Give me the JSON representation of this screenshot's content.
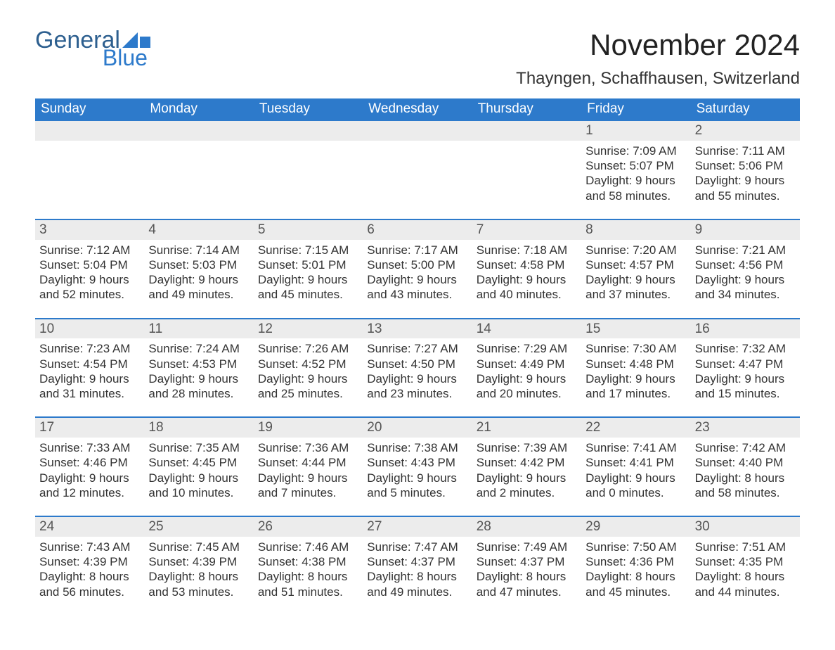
{
  "brand": {
    "word1": "General",
    "word2": "Blue",
    "logo_fill": "#2d7acb",
    "text_color_dark": "#2d5f8f",
    "text_color_light": "#2d7acb"
  },
  "title": "November 2024",
  "location": "Thayngen, Schaffhausen, Switzerland",
  "header_bg": "#2d7acb",
  "header_fg": "#ffffff",
  "week_border_color": "#2d7acb",
  "daynum_bg": "#ececec",
  "body_text_color": "#333333",
  "background_color": "#ffffff",
  "font_family": "Arial, Helvetica, sans-serif",
  "title_fontsize": 42,
  "location_fontsize": 24,
  "weekday_fontsize": 19,
  "daynum_fontsize": 19,
  "cell_fontsize": 17,
  "weekdays": [
    "Sunday",
    "Monday",
    "Tuesday",
    "Wednesday",
    "Thursday",
    "Friday",
    "Saturday"
  ],
  "weeks": [
    [
      {
        "day": "",
        "sunrise": "",
        "sunset": "",
        "daylight1": "",
        "daylight2": ""
      },
      {
        "day": "",
        "sunrise": "",
        "sunset": "",
        "daylight1": "",
        "daylight2": ""
      },
      {
        "day": "",
        "sunrise": "",
        "sunset": "",
        "daylight1": "",
        "daylight2": ""
      },
      {
        "day": "",
        "sunrise": "",
        "sunset": "",
        "daylight1": "",
        "daylight2": ""
      },
      {
        "day": "",
        "sunrise": "",
        "sunset": "",
        "daylight1": "",
        "daylight2": ""
      },
      {
        "day": "1",
        "sunrise": "Sunrise: 7:09 AM",
        "sunset": "Sunset: 5:07 PM",
        "daylight1": "Daylight: 9 hours",
        "daylight2": "and 58 minutes."
      },
      {
        "day": "2",
        "sunrise": "Sunrise: 7:11 AM",
        "sunset": "Sunset: 5:06 PM",
        "daylight1": "Daylight: 9 hours",
        "daylight2": "and 55 minutes."
      }
    ],
    [
      {
        "day": "3",
        "sunrise": "Sunrise: 7:12 AM",
        "sunset": "Sunset: 5:04 PM",
        "daylight1": "Daylight: 9 hours",
        "daylight2": "and 52 minutes."
      },
      {
        "day": "4",
        "sunrise": "Sunrise: 7:14 AM",
        "sunset": "Sunset: 5:03 PM",
        "daylight1": "Daylight: 9 hours",
        "daylight2": "and 49 minutes."
      },
      {
        "day": "5",
        "sunrise": "Sunrise: 7:15 AM",
        "sunset": "Sunset: 5:01 PM",
        "daylight1": "Daylight: 9 hours",
        "daylight2": "and 45 minutes."
      },
      {
        "day": "6",
        "sunrise": "Sunrise: 7:17 AM",
        "sunset": "Sunset: 5:00 PM",
        "daylight1": "Daylight: 9 hours",
        "daylight2": "and 43 minutes."
      },
      {
        "day": "7",
        "sunrise": "Sunrise: 7:18 AM",
        "sunset": "Sunset: 4:58 PM",
        "daylight1": "Daylight: 9 hours",
        "daylight2": "and 40 minutes."
      },
      {
        "day": "8",
        "sunrise": "Sunrise: 7:20 AM",
        "sunset": "Sunset: 4:57 PM",
        "daylight1": "Daylight: 9 hours",
        "daylight2": "and 37 minutes."
      },
      {
        "day": "9",
        "sunrise": "Sunrise: 7:21 AM",
        "sunset": "Sunset: 4:56 PM",
        "daylight1": "Daylight: 9 hours",
        "daylight2": "and 34 minutes."
      }
    ],
    [
      {
        "day": "10",
        "sunrise": "Sunrise: 7:23 AM",
        "sunset": "Sunset: 4:54 PM",
        "daylight1": "Daylight: 9 hours",
        "daylight2": "and 31 minutes."
      },
      {
        "day": "11",
        "sunrise": "Sunrise: 7:24 AM",
        "sunset": "Sunset: 4:53 PM",
        "daylight1": "Daylight: 9 hours",
        "daylight2": "and 28 minutes."
      },
      {
        "day": "12",
        "sunrise": "Sunrise: 7:26 AM",
        "sunset": "Sunset: 4:52 PM",
        "daylight1": "Daylight: 9 hours",
        "daylight2": "and 25 minutes."
      },
      {
        "day": "13",
        "sunrise": "Sunrise: 7:27 AM",
        "sunset": "Sunset: 4:50 PM",
        "daylight1": "Daylight: 9 hours",
        "daylight2": "and 23 minutes."
      },
      {
        "day": "14",
        "sunrise": "Sunrise: 7:29 AM",
        "sunset": "Sunset: 4:49 PM",
        "daylight1": "Daylight: 9 hours",
        "daylight2": "and 20 minutes."
      },
      {
        "day": "15",
        "sunrise": "Sunrise: 7:30 AM",
        "sunset": "Sunset: 4:48 PM",
        "daylight1": "Daylight: 9 hours",
        "daylight2": "and 17 minutes."
      },
      {
        "day": "16",
        "sunrise": "Sunrise: 7:32 AM",
        "sunset": "Sunset: 4:47 PM",
        "daylight1": "Daylight: 9 hours",
        "daylight2": "and 15 minutes."
      }
    ],
    [
      {
        "day": "17",
        "sunrise": "Sunrise: 7:33 AM",
        "sunset": "Sunset: 4:46 PM",
        "daylight1": "Daylight: 9 hours",
        "daylight2": "and 12 minutes."
      },
      {
        "day": "18",
        "sunrise": "Sunrise: 7:35 AM",
        "sunset": "Sunset: 4:45 PM",
        "daylight1": "Daylight: 9 hours",
        "daylight2": "and 10 minutes."
      },
      {
        "day": "19",
        "sunrise": "Sunrise: 7:36 AM",
        "sunset": "Sunset: 4:44 PM",
        "daylight1": "Daylight: 9 hours",
        "daylight2": "and 7 minutes."
      },
      {
        "day": "20",
        "sunrise": "Sunrise: 7:38 AM",
        "sunset": "Sunset: 4:43 PM",
        "daylight1": "Daylight: 9 hours",
        "daylight2": "and 5 minutes."
      },
      {
        "day": "21",
        "sunrise": "Sunrise: 7:39 AM",
        "sunset": "Sunset: 4:42 PM",
        "daylight1": "Daylight: 9 hours",
        "daylight2": "and 2 minutes."
      },
      {
        "day": "22",
        "sunrise": "Sunrise: 7:41 AM",
        "sunset": "Sunset: 4:41 PM",
        "daylight1": "Daylight: 9 hours",
        "daylight2": "and 0 minutes."
      },
      {
        "day": "23",
        "sunrise": "Sunrise: 7:42 AM",
        "sunset": "Sunset: 4:40 PM",
        "daylight1": "Daylight: 8 hours",
        "daylight2": "and 58 minutes."
      }
    ],
    [
      {
        "day": "24",
        "sunrise": "Sunrise: 7:43 AM",
        "sunset": "Sunset: 4:39 PM",
        "daylight1": "Daylight: 8 hours",
        "daylight2": "and 56 minutes."
      },
      {
        "day": "25",
        "sunrise": "Sunrise: 7:45 AM",
        "sunset": "Sunset: 4:39 PM",
        "daylight1": "Daylight: 8 hours",
        "daylight2": "and 53 minutes."
      },
      {
        "day": "26",
        "sunrise": "Sunrise: 7:46 AM",
        "sunset": "Sunset: 4:38 PM",
        "daylight1": "Daylight: 8 hours",
        "daylight2": "and 51 minutes."
      },
      {
        "day": "27",
        "sunrise": "Sunrise: 7:47 AM",
        "sunset": "Sunset: 4:37 PM",
        "daylight1": "Daylight: 8 hours",
        "daylight2": "and 49 minutes."
      },
      {
        "day": "28",
        "sunrise": "Sunrise: 7:49 AM",
        "sunset": "Sunset: 4:37 PM",
        "daylight1": "Daylight: 8 hours",
        "daylight2": "and 47 minutes."
      },
      {
        "day": "29",
        "sunrise": "Sunrise: 7:50 AM",
        "sunset": "Sunset: 4:36 PM",
        "daylight1": "Daylight: 8 hours",
        "daylight2": "and 45 minutes."
      },
      {
        "day": "30",
        "sunrise": "Sunrise: 7:51 AM",
        "sunset": "Sunset: 4:35 PM",
        "daylight1": "Daylight: 8 hours",
        "daylight2": "and 44 minutes."
      }
    ]
  ]
}
